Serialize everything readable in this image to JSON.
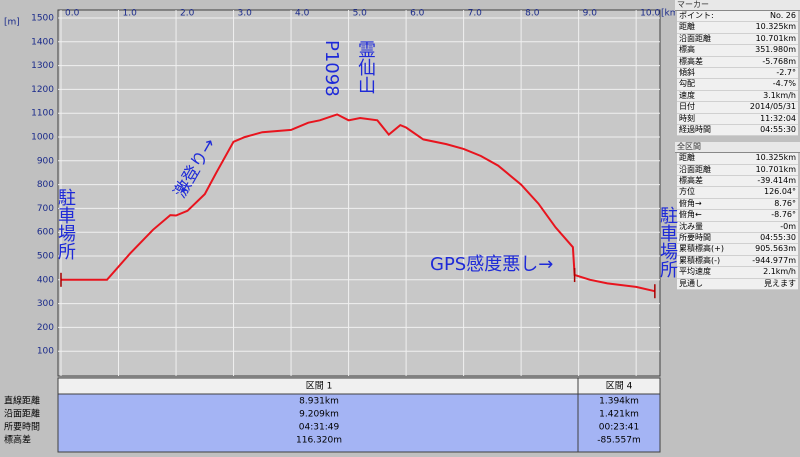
{
  "chart_data": {
    "type": "line",
    "y_unit": "[m]",
    "x_unit": "[km]",
    "x": [
      0,
      0.8,
      1.2,
      1.6,
      1.9,
      2.0,
      2.2,
      2.5,
      2.7,
      3.0,
      3.2,
      3.5,
      4.0,
      4.3,
      4.5,
      4.8,
      5.0,
      5.2,
      5.5,
      5.7,
      5.9,
      6.0,
      6.3,
      6.7,
      7.0,
      7.3,
      7.6,
      8.0,
      8.3,
      8.6,
      8.9,
      8.93,
      9.2,
      9.5,
      10.0,
      10.325
    ],
    "series": [
      {
        "name": "標高",
        "color": "#e8141e",
        "values": [
          400,
          400,
          510,
          610,
          672,
          670,
          690,
          760,
          850,
          980,
          1000,
          1020,
          1030,
          1060,
          1070,
          1095,
          1070,
          1080,
          1070,
          1010,
          1050,
          1040,
          990,
          970,
          950,
          920,
          880,
          800,
          720,
          620,
          537,
          420,
          400,
          385,
          370,
          352
        ]
      }
    ],
    "xlim": [
      0,
      10.38
    ],
    "ylim": [
      0,
      1500
    ],
    "xticks": [
      {
        "value": 0,
        "label": "0.0"
      },
      {
        "value": 1,
        "label": "1.0"
      },
      {
        "value": 2,
        "label": "2.0"
      },
      {
        "value": 3,
        "label": "3.0"
      },
      {
        "value": 4,
        "label": "4.0"
      },
      {
        "value": 5,
        "label": "5.0"
      },
      {
        "value": 6,
        "label": "6.0"
      },
      {
        "value": 7,
        "label": "7.0"
      },
      {
        "value": 8,
        "label": "8.0"
      },
      {
        "value": 9,
        "label": "9.0"
      },
      {
        "value": 10,
        "label": "10.0"
      }
    ],
    "yticks": [
      100,
      200,
      300,
      400,
      500,
      600,
      700,
      800,
      900,
      1000,
      1100,
      1200,
      1300,
      1400,
      1500
    ],
    "grid": true,
    "annotations": [
      "駐車場所",
      "激登り→",
      "←",
      "P1098",
      "霊仙山",
      "GPS感度悪し→",
      "駐車場所"
    ]
  },
  "sections_table": {
    "headers": [
      "区間 1",
      "区間 4"
    ],
    "row_labels": [
      "直線距離",
      "沿面距離",
      "所要時間",
      "標高差"
    ],
    "rows": [
      [
        "8.931km",
        "1.394km"
      ],
      [
        "9.209km",
        "1.421km"
      ],
      [
        "04:31:49",
        "00:23:41"
      ],
      [
        "116.320m",
        "-85.557m"
      ]
    ]
  },
  "side_panel": {
    "marker_title": "マーカー",
    "marker_rows": [
      [
        "ポイント:",
        "No. 26"
      ],
      [
        "距離",
        "10.325km"
      ],
      [
        "沿面距離",
        "10.701km"
      ],
      [
        "標高",
        "351.980m"
      ],
      [
        "標高差",
        "-5.768m"
      ],
      [
        "傾斜",
        "-2.7°"
      ],
      [
        "勾配",
        "-4.7%"
      ],
      [
        "速度",
        "3.1km/h"
      ],
      [
        "日付",
        "2014/05/31"
      ],
      [
        "時刻",
        "11:32:04"
      ],
      [
        "経過時間",
        "04:55:30"
      ]
    ],
    "total_title": "全区間",
    "total_rows": [
      [
        "距離",
        "10.325km"
      ],
      [
        "沿面距離",
        "10.701km"
      ],
      [
        "標高差",
        "-39.414m"
      ],
      [
        "方位",
        "126.04°"
      ],
      [
        "俯角→",
        "8.76°"
      ],
      [
        "俯角←",
        "-8.76°"
      ],
      [
        "沈み量",
        "-0m"
      ],
      [
        "所要時間",
        "04:55:30"
      ],
      [
        "累積標高(+)",
        "905.563m"
      ],
      [
        "累積標高(-)",
        "-944.977m"
      ],
      [
        "平均速度",
        "2.1km/h"
      ],
      [
        "見通し",
        "見えます"
      ]
    ]
  }
}
